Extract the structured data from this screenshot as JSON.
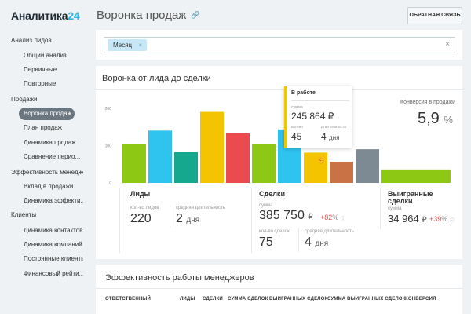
{
  "app": {
    "logo_main": "Аналитика",
    "logo_accent": "24"
  },
  "sidebar": {
    "items": [
      {
        "label": "Анализ лидов",
        "type": "section"
      },
      {
        "label": "Общий анализ",
        "type": "sub"
      },
      {
        "label": "Первичные",
        "type": "sub"
      },
      {
        "label": "Повторные",
        "type": "sub"
      },
      {
        "label": "Продажи",
        "type": "section"
      },
      {
        "label": "Воронка продаж",
        "type": "sub",
        "active": true
      },
      {
        "label": "План продаж",
        "type": "sub"
      },
      {
        "label": "Динамика продаж",
        "type": "sub"
      },
      {
        "label": "Сравнение перио...",
        "type": "sub"
      },
      {
        "label": "Эффективность менеджеров",
        "type": "section"
      },
      {
        "label": "Вклад в продажи",
        "type": "sub"
      },
      {
        "label": "Динамика эффекти...",
        "type": "sub"
      },
      {
        "label": "Клиенты",
        "type": "section"
      },
      {
        "label": "Динамика контактов",
        "type": "sub"
      },
      {
        "label": "Динамика компаний",
        "type": "sub"
      },
      {
        "label": "Постоянные клиенты",
        "type": "sub"
      },
      {
        "label": "Финансовый рейти...",
        "type": "sub"
      }
    ]
  },
  "header": {
    "title": "Воронка продаж",
    "feedback_label": "ОБРАТНАЯ СВЯЗЬ",
    "icons": {
      "edit": "pencil-icon",
      "link": "link-icon"
    }
  },
  "filter": {
    "chip_label": "Месяц",
    "chip_close": "×",
    "clear": "×"
  },
  "funnel": {
    "title": "Воронка от лида до сделки",
    "conversion_label": "Конверсия в продажи",
    "conversion_value": "5,9",
    "conversion_unit": "%",
    "tooltip": {
      "title": "В работе",
      "sum_label": "сумма",
      "sum_value": "245 864 ₽",
      "count_label": "кол-во",
      "count_value": "45",
      "duration_label": "длительность",
      "duration_value": "4",
      "duration_unit": "дня"
    },
    "leads": {
      "label": "Лиды",
      "count_label": "кол-во лидов",
      "count_value": "220",
      "duration_label": "средняя длительность",
      "duration_value": "2",
      "duration_unit": "дня"
    },
    "deals": {
      "label": "Сделки",
      "sum_label": "сумма",
      "sum_value": "385 750",
      "currency": "₽",
      "delta": "+82",
      "delta_unit": "%",
      "count_label": "кол-во сделок",
      "count_value": "75",
      "duration_label": "средняя длительность",
      "duration_value": "4",
      "duration_unit": "дня"
    },
    "won": {
      "label_line1": "Выигранные",
      "label_line2": "сделки",
      "sum_label": "сумма",
      "sum_value": "34 964",
      "currency": "₽",
      "delta": "+39",
      "delta_unit": "%"
    }
  },
  "chart_data": {
    "type": "bar",
    "yticks": [
      0,
      100,
      200
    ],
    "ylim": [
      0,
      210
    ],
    "values": [
      103,
      140,
      83,
      190,
      133,
      103,
      143,
      81,
      56,
      90,
      36
    ],
    "colors": [
      "#8cc814",
      "#2fc3ef",
      "#15a88f",
      "#f4c400",
      "#eb4b4f",
      "#8cc814",
      "#2fc3ef",
      "#f4c400",
      "#c87245",
      "#7d8a93",
      "#8cc814"
    ],
    "highlight_index": 7
  },
  "managers": {
    "title": "Эффективность работы менеджеров",
    "columns": [
      "ОТВЕТСТВЕННЫЙ",
      "ЛИДЫ",
      "СДЕЛКИ",
      "СУММА СДЕЛОК",
      "ВЫИГРАННЫХ СДЕЛОК",
      "СУММА ВЫИГРАННЫХ СДЕЛОК",
      "КОНВЕРСИЯ"
    ]
  }
}
